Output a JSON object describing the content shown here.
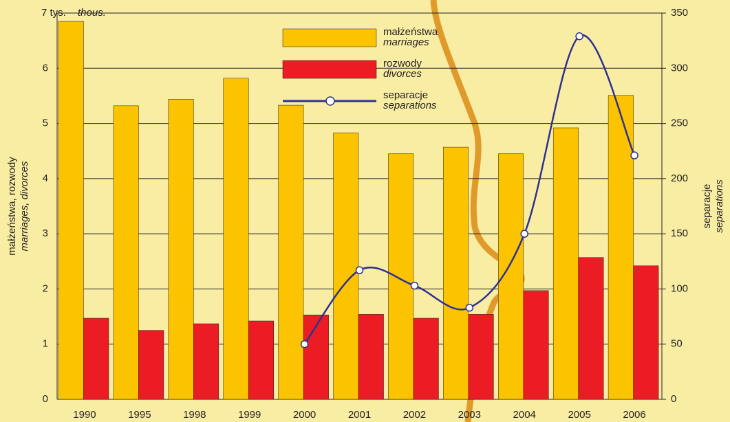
{
  "chart_data": {
    "type": "bar",
    "categories": [
      "1990",
      "1995",
      "1998",
      "1999",
      "2000",
      "2001",
      "2002",
      "2003",
      "2004",
      "2005",
      "2006"
    ],
    "series": [
      {
        "name": "małżeństwa",
        "name_en": "marriages",
        "color": "#fcc300",
        "values": [
          6.85,
          5.32,
          5.44,
          5.82,
          5.33,
          4.83,
          4.45,
          4.57,
          4.45,
          4.92,
          5.51
        ]
      },
      {
        "name": "rozwody",
        "name_en": "divorces",
        "color": "#ec1c24",
        "values": [
          1.47,
          1.25,
          1.37,
          1.42,
          1.53,
          1.54,
          1.47,
          1.54,
          1.97,
          2.57,
          2.42
        ]
      },
      {
        "name": "separacje",
        "name_en": "separations",
        "color": "#2e3192",
        "type": "line",
        "axis": "y2",
        "values": [
          null,
          null,
          null,
          null,
          50,
          117,
          103,
          83,
          150,
          329,
          221
        ]
      }
    ],
    "ylim": [
      0,
      7
    ],
    "yticks": [
      0,
      1,
      2,
      3,
      4,
      5,
      6,
      {
        "value": 7,
        "label": "7 tys."
      }
    ],
    "y_unit_en": "thous.",
    "y2lim": [
      0,
      350
    ],
    "y2ticks": [
      0,
      50,
      100,
      150,
      200,
      250,
      300,
      350
    ],
    "ylabel": "małżeństwa, rozwody",
    "ylabel_en": "marriages, divorces",
    "y2label": "separacje",
    "y2label_en": "separations",
    "grid": true
  }
}
